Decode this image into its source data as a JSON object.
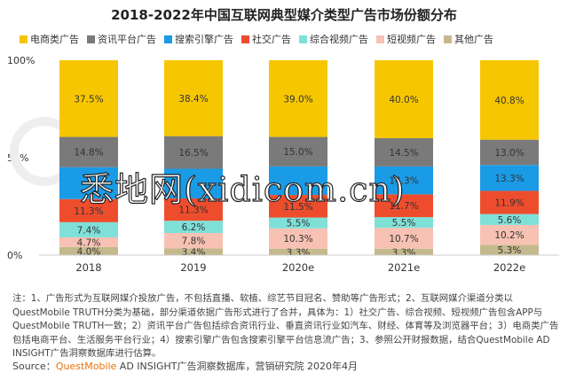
{
  "chart_data": {
    "type": "bar",
    "stacked": true,
    "title": "2018-2022年中国互联网典型媒介类型广告市场份额分布",
    "categories": [
      "2018",
      "2019",
      "2020e",
      "2021e",
      "2022e"
    ],
    "series": [
      {
        "name": "电商类广告",
        "color": "#f6c700",
        "values": [
          37.5,
          38.4,
          39.0,
          40.0,
          40.8
        ],
        "labels": [
          "37.5%",
          "38.4%",
          "39.0%",
          "40.0%",
          "40.8%"
        ]
      },
      {
        "name": "资讯平台广告",
        "color": "#7a7a7a",
        "values": [
          14.8,
          16.5,
          15.0,
          14.5,
          13.0
        ],
        "labels": [
          "14.8%",
          "16.5%",
          "15.0%",
          "14.5%",
          "13.0%"
        ]
      },
      {
        "name": "搜索引擎广告",
        "color": "#1a9be6",
        "values": [
          15.6,
          15.0,
          14.5,
          14.3,
          13.3
        ],
        "labels": [
          "",
          "",
          "",
          "14.3%",
          "13.3%"
        ]
      },
      {
        "name": "社交广告",
        "color": "#ee4d2d",
        "values": [
          11.3,
          11.3,
          11.5,
          11.7,
          11.9
        ],
        "labels": [
          "11.3%",
          "11.3%",
          "11.5%",
          "11.7%",
          "11.9%"
        ]
      },
      {
        "name": "综合视频广告",
        "color": "#7fe0d8",
        "values": [
          7.4,
          6.2,
          5.5,
          5.5,
          5.6
        ],
        "labels": [
          "7.4%",
          "6.2%",
          "5.5%",
          "5.5%",
          "5.6%"
        ]
      },
      {
        "name": "短视频广告",
        "color": "#f7c1b3",
        "values": [
          4.7,
          7.8,
          10.3,
          10.7,
          10.2
        ],
        "labels": [
          "4.7%",
          "7.8%",
          "10.3%",
          "10.7%",
          "10.2%"
        ]
      },
      {
        "name": "其他广告",
        "color": "#c4b98c",
        "values": [
          4.0,
          3.4,
          3.3,
          3.3,
          5.3
        ],
        "labels": [
          "4.0%",
          "3.4%",
          "3.3%",
          "3.3%",
          "5.3%"
        ]
      }
    ],
    "y_ticks": [
      "0%",
      "50%",
      "100%"
    ],
    "ylim": [
      0,
      100
    ],
    "legend_position": "top",
    "grid": false
  },
  "notes": "注：1、广告形式为互联网媒介投放广告，不包括直播、软植、综艺节目冠名、赞助等广告形式；2、互联网媒介渠道分类以QuestMobile TRUTH分类为基础，部分渠道依据广告形式进行了合并，具体为：1）社交广告、综合视频、短视频广告包含APP与QuestMobile TRUTH一致；2）资讯平台广告包括综合资讯行业、垂直资讯行业如汽车、财经、体育等及浏览器平台；3）电商类广告包括电商平台、生活服务平台行业；4）搜索引擎广告包含搜索引擎平台信息流广告；3、参照公开财报数据，结合QuestMobile AD INSIGHT广告洞察数据库进行估算。",
  "source": {
    "prefix": "Source：",
    "brand": "QuestMobile",
    "text": " AD INSIGHT广告洞察数据库，营销研究院 2020年4月"
  },
  "watermark": "悉地网(xidicom.cn)"
}
